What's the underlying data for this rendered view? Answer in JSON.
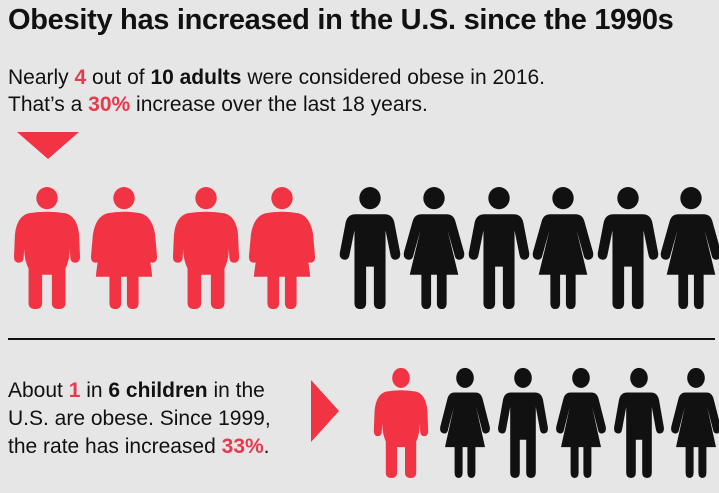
{
  "title": "Obesity has increased in the U.S. since the 1990s",
  "adults": {
    "line1": {
      "pre": "Nearly ",
      "num": "4",
      "mid": " out of ",
      "bold": "10 adults",
      "post": " were considered obese in 2016."
    },
    "line2": {
      "pre": "That’s a ",
      "pct": "30%",
      "post": " increase over the last 18 years."
    },
    "obese_count": 4,
    "total": 10,
    "figures": [
      "man-obese",
      "woman-obese",
      "man-obese",
      "woman-obese",
      "man",
      "woman",
      "man",
      "woman",
      "man",
      "woman"
    ]
  },
  "children": {
    "line1": {
      "pre": "About ",
      "num": "1",
      "mid": " in ",
      "bold": "6 children",
      "post": " in the"
    },
    "line2": "U.S. are obese. Since 1999,",
    "line3": {
      "pre": "the rate has increased ",
      "pct": "33%",
      "post": "."
    },
    "obese_count": 1,
    "total": 6,
    "figures": [
      "child-obese",
      "woman",
      "man",
      "woman",
      "man",
      "woman"
    ]
  },
  "colors": {
    "accent": "#f23343",
    "text": "#111111",
    "background": "#e6e6e6"
  }
}
